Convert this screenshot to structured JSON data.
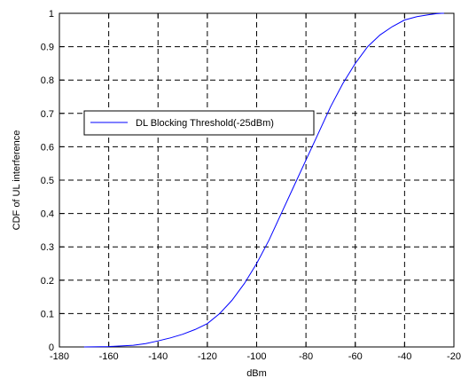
{
  "chart_data": {
    "type": "line",
    "title": "",
    "xlabel": "dBm",
    "ylabel": "CDF of UL interference",
    "xlim": [
      -180,
      -20
    ],
    "ylim": [
      0,
      1
    ],
    "xticks": [
      -180,
      -160,
      -140,
      -120,
      -100,
      -80,
      -60,
      -40,
      -20
    ],
    "yticks": [
      0,
      0.1,
      0.2,
      0.3,
      0.4,
      0.5,
      0.6,
      0.7,
      0.8,
      0.9,
      1
    ],
    "xtick_labels": [
      "-180",
      "-160",
      "-140",
      "-120",
      "-100",
      "-80",
      "-60",
      "-40",
      "-20"
    ],
    "ytick_labels": [
      "0",
      "0.1",
      "0.2",
      "0.3",
      "0.4",
      "0.5",
      "0.6",
      "0.7",
      "0.8",
      "0.9",
      "1"
    ],
    "grid": true,
    "grid_style": "dashed",
    "legend_position": "upper-left",
    "series": [
      {
        "name": "DL Blocking Threshold(-25dBm)",
        "color": "#0000ff",
        "x": [
          -170,
          -160,
          -150,
          -145,
          -140,
          -135,
          -130,
          -125,
          -120,
          -115,
          -110,
          -105,
          -100,
          -95,
          -90,
          -85,
          -80,
          -75,
          -70,
          -65,
          -60,
          -55,
          -50,
          -45,
          -40,
          -35,
          -30,
          -27,
          -25,
          -24
        ],
        "y": [
          0.0,
          0.001,
          0.005,
          0.01,
          0.018,
          0.027,
          0.038,
          0.052,
          0.07,
          0.1,
          0.14,
          0.19,
          0.25,
          0.32,
          0.4,
          0.48,
          0.56,
          0.64,
          0.72,
          0.79,
          0.85,
          0.9,
          0.935,
          0.96,
          0.98,
          0.99,
          0.996,
          0.999,
          1.0,
          1.0
        ]
      }
    ]
  }
}
